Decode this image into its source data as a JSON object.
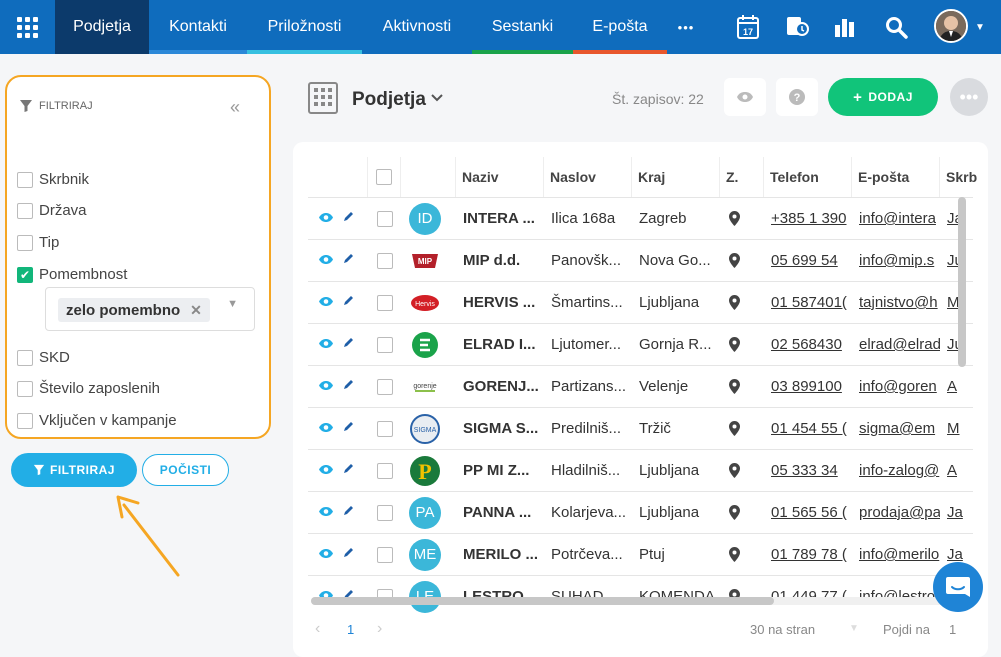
{
  "nav": {
    "items": [
      {
        "label": "Podjetja",
        "color": ""
      },
      {
        "label": "Kontakti",
        "color": "#2b88d8"
      },
      {
        "label": "Priložnosti",
        "color": "#37c0e0"
      },
      {
        "label": "Aktivnosti",
        "color": ""
      },
      {
        "label": "Sestanki",
        "color": "#1aa34a"
      },
      {
        "label": "E-pošta",
        "color": "#e8572d"
      }
    ],
    "more": "•••",
    "calendar_day": "17"
  },
  "filter": {
    "title": "FILTRIRAJ",
    "items": [
      {
        "label": "Skrbnik",
        "checked": false
      },
      {
        "label": "Država",
        "checked": false
      },
      {
        "label": "Tip",
        "checked": false
      },
      {
        "label": "Pomembnost",
        "checked": true
      },
      {
        "label": "SKD",
        "checked": false
      },
      {
        "label": "Število zaposlenih",
        "checked": false
      },
      {
        "label": "Vključen v kampanje",
        "checked": false
      }
    ],
    "selected_tag": "zelo pomembno",
    "filter_button": "FILTRIRAJ",
    "clear_button": "POČISTI"
  },
  "page": {
    "title": "Podjetja",
    "count": "Št. zapisov: 22",
    "add_button": "DODAJ"
  },
  "table": {
    "headers": [
      "Naziv",
      "Naslov",
      "Kraj",
      "Z.",
      "Telefon",
      "E-pošta",
      "Skrb"
    ],
    "rows": [
      {
        "logo": "ID",
        "logo_color": "#3bb7d9",
        "name": "INTERA ...",
        "address": "Ilica 168a",
        "city": "Zagreb",
        "phone": "+385 1 390",
        "email": "info@intera",
        "owner": "Ja"
      },
      {
        "logo": "",
        "logo_color": "#ffffff",
        "name": "MIP d.d.",
        "address": "Panovšk...",
        "city": "Nova Go...",
        "phone": "05 699 54",
        "email": "info@mip.s",
        "owner": "Ju"
      },
      {
        "logo": "",
        "logo_color": "#ffffff",
        "name": "HERVIS ...",
        "address": "Šmartins...",
        "city": "Ljubljana",
        "phone": "01 587401(",
        "email": "tajnistvo@h",
        "owner": "M"
      },
      {
        "logo": "",
        "logo_color": "#ffffff",
        "name": "ELRAD I...",
        "address": "Ljutomer...",
        "city": "Gornja R...",
        "phone": "02 568430",
        "email": "elrad@elrad",
        "owner": "Ju"
      },
      {
        "logo": "",
        "logo_color": "#ffffff",
        "name": "GORENJ...",
        "address": "Partizans...",
        "city": "Velenje",
        "phone": "03 899100",
        "email": "info@goren",
        "owner": "A"
      },
      {
        "logo": "",
        "logo_color": "#ffffff",
        "name": "SIGMA S...",
        "address": "Predilniš...",
        "city": "Tržič",
        "phone": "01 454 55 (",
        "email": "sigma@em",
        "owner": "M"
      },
      {
        "logo": "",
        "logo_color": "#ffffff",
        "name": "PP MI Z...",
        "address": "Hladilniš...",
        "city": "Ljubljana",
        "phone": "05 333 34",
        "email": "info-zalog@",
        "owner": "A"
      },
      {
        "logo": "PA",
        "logo_color": "#3bb7d9",
        "name": "PANNA ...",
        "address": "Kolarjeva...",
        "city": "Ljubljana",
        "phone": "01 565 56 (",
        "email": "prodaja@pa",
        "owner": "Ja"
      },
      {
        "logo": "ME",
        "logo_color": "#3bb7d9",
        "name": "MERILO ...",
        "address": "Potrčeva...",
        "city": "Ptuj",
        "phone": "01 789 78 (",
        "email": "info@merilo",
        "owner": "Ja"
      },
      {
        "logo": "LE",
        "logo_color": "#3bb7d9",
        "name": "LESTRO ...",
        "address": "SUHAD...",
        "city": "KOMENDA",
        "phone": "01 449 77 (",
        "email": "info@lestro",
        "owner": "Ja"
      }
    ]
  },
  "pager": {
    "page": "1",
    "per_page": "30 na stran",
    "goto_label": "Pojdi na",
    "goto_value": "1"
  }
}
